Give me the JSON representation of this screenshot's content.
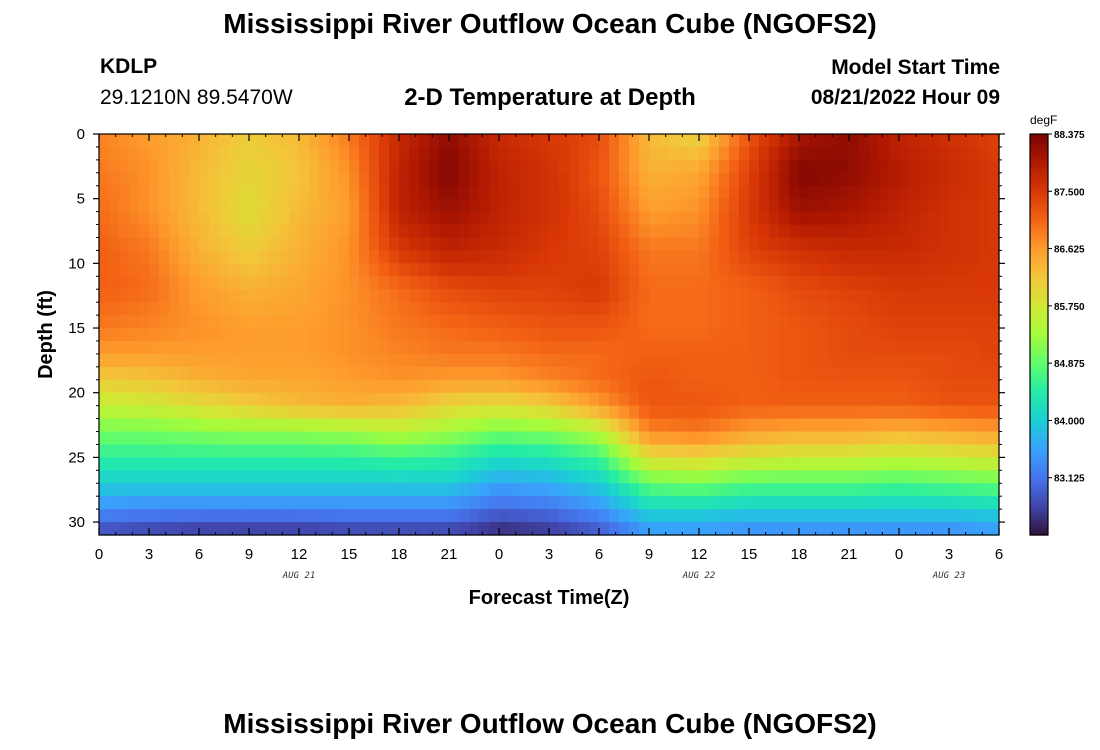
{
  "header": {
    "title": "Mississippi River Outflow Ocean Cube (NGOFS2)",
    "station_id": "KDLP",
    "coordinates": "29.1210N  89.5470W",
    "chart_title": "2-D Temperature at Depth",
    "model_start_label": "Model Start Time",
    "model_start_value": "08/21/2022 Hour 09"
  },
  "footer": {
    "title_repeat": "Mississippi River Outflow Ocean Cube (NGOFS2)"
  },
  "chart_data": {
    "type": "heatmap",
    "xlabel": "Forecast Time(Z)",
    "ylabel": "Depth (ft)",
    "x_tick_labels": [
      "0",
      "3",
      "6",
      "9",
      "12",
      "15",
      "18",
      "21",
      "0",
      "3",
      "6",
      "9",
      "12",
      "15",
      "18",
      "21",
      "0",
      "3",
      "6"
    ],
    "x_range_hours": [
      0,
      54
    ],
    "date_labels": [
      {
        "text": "AUG 21",
        "hour": 12
      },
      {
        "text": "AUG 22",
        "hour": 36
      },
      {
        "text": "AUG 23",
        "hour": 51
      }
    ],
    "y_tick_labels": [
      "0",
      "5",
      "10",
      "15",
      "20",
      "25",
      "30"
    ],
    "y_range_ft": [
      0,
      31
    ],
    "y_inverted": true,
    "colorbar": {
      "unit": "degF",
      "min": 82.25,
      "max": 88.375,
      "tick_labels": [
        "88.375",
        "87.500",
        "86.625",
        "85.750",
        "84.875",
        "84.000",
        "83.125"
      ],
      "colormap": [
        "#30123b",
        "#4145ab",
        "#4675ed",
        "#39a2fc",
        "#1bcfd4",
        "#24eca6",
        "#61fc6c",
        "#a4fc3b",
        "#d1e834",
        "#f3c63a",
        "#fe9b2d",
        "#f36315",
        "#d93806",
        "#b11901",
        "#7a0403"
      ]
    },
    "time_hours": [
      0,
      3,
      6,
      9,
      12,
      15,
      18,
      21,
      24,
      27,
      30,
      33,
      36,
      39,
      42,
      45,
      48,
      51,
      54
    ],
    "depth_ft": [
      0,
      3,
      6,
      9,
      12,
      15,
      17,
      19,
      21,
      23,
      25,
      27,
      29,
      31
    ],
    "temperature_degF": [
      [
        86.8,
        86.6,
        86.4,
        86.1,
        86.3,
        86.9,
        87.7,
        88.2,
        87.7,
        87.5,
        87.3,
        86.3,
        86.0,
        87.2,
        88.0,
        88.2,
        87.8,
        87.6,
        87.4
      ],
      [
        86.9,
        86.7,
        86.3,
        86.0,
        86.2,
        86.7,
        87.8,
        88.3,
        87.8,
        87.6,
        87.2,
        86.4,
        86.5,
        87.4,
        88.3,
        88.2,
        87.9,
        87.7,
        87.5
      ],
      [
        87.0,
        86.7,
        86.3,
        85.9,
        86.3,
        86.6,
        87.8,
        88.1,
        87.8,
        87.6,
        87.3,
        86.6,
        86.7,
        87.5,
        88.1,
        88.0,
        87.8,
        87.6,
        87.5
      ],
      [
        87.1,
        86.9,
        86.4,
        86.1,
        86.4,
        86.7,
        87.5,
        87.8,
        87.7,
        87.5,
        87.4,
        86.9,
        86.9,
        87.4,
        87.6,
        87.7,
        87.7,
        87.6,
        87.5
      ],
      [
        87.1,
        87.0,
        86.6,
        86.4,
        86.5,
        86.7,
        87.0,
        87.3,
        87.4,
        87.4,
        87.5,
        87.0,
        87.0,
        87.1,
        87.3,
        87.4,
        87.5,
        87.5,
        87.5
      ],
      [
        86.9,
        86.8,
        86.7,
        86.6,
        86.6,
        86.7,
        86.9,
        87.0,
        87.1,
        87.2,
        87.2,
        87.0,
        87.0,
        87.1,
        87.2,
        87.3,
        87.4,
        87.4,
        87.4
      ],
      [
        86.6,
        86.6,
        86.6,
        86.6,
        86.6,
        86.7,
        86.8,
        86.9,
        86.9,
        87.0,
        87.0,
        87.1,
        87.1,
        87.1,
        87.2,
        87.3,
        87.3,
        87.3,
        87.4
      ],
      [
        86.1,
        86.2,
        86.4,
        86.5,
        86.5,
        86.6,
        86.7,
        86.6,
        86.6,
        86.8,
        87.0,
        87.2,
        87.1,
        87.1,
        87.2,
        87.2,
        87.2,
        87.3,
        87.3
      ],
      [
        85.6,
        85.7,
        85.9,
        86.1,
        86.3,
        86.4,
        86.3,
        86.0,
        85.9,
        86.1,
        86.6,
        87.2,
        87.2,
        87.1,
        87.1,
        87.1,
        87.1,
        87.2,
        87.2
      ],
      [
        85.0,
        85.0,
        85.1,
        85.2,
        85.2,
        85.3,
        85.5,
        85.3,
        85.0,
        85.1,
        85.5,
        86.8,
        86.9,
        86.6,
        86.5,
        86.5,
        86.4,
        86.5,
        86.6
      ],
      [
        84.5,
        84.5,
        84.5,
        84.5,
        84.5,
        84.5,
        84.6,
        84.5,
        84.2,
        84.3,
        84.6,
        85.9,
        86.0,
        85.8,
        85.7,
        85.7,
        85.6,
        85.7,
        85.8
      ],
      [
        84.0,
        84.0,
        84.0,
        84.0,
        84.0,
        84.0,
        84.0,
        84.0,
        83.6,
        83.7,
        84.0,
        84.9,
        85.0,
        84.8,
        84.8,
        84.8,
        84.7,
        84.8,
        84.9
      ],
      [
        83.4,
        83.3,
        83.3,
        83.3,
        83.3,
        83.3,
        83.3,
        83.3,
        83.0,
        83.1,
        83.4,
        84.1,
        84.1,
        84.0,
        84.0,
        84.0,
        84.0,
        84.0,
        84.1
      ],
      [
        82.7,
        82.6,
        82.5,
        82.5,
        82.5,
        82.6,
        82.6,
        82.6,
        82.4,
        82.5,
        82.8,
        83.4,
        83.4,
        83.3,
        83.3,
        83.3,
        83.3,
        83.3,
        83.4
      ]
    ]
  }
}
